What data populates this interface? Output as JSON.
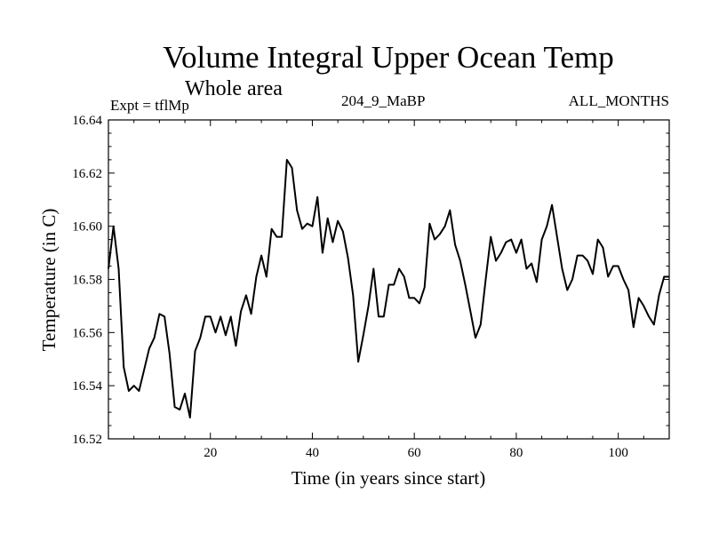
{
  "chart_data": {
    "type": "line",
    "title": "Volume Integral Upper Ocean Temp",
    "subtitle": "Whole area",
    "expt_label": "Expt = tflMp",
    "run_label": "204_9_MaBP",
    "months_label": "ALL_MONTHS",
    "xlabel": "Time (in years since start)",
    "ylabel": "Temperature (in C)",
    "xlim": [
      0,
      110
    ],
    "ylim": [
      16.52,
      16.64
    ],
    "x_ticks": [
      20,
      40,
      60,
      80,
      100
    ],
    "x_tick_labels": [
      "20",
      "40",
      "60",
      "80",
      "100"
    ],
    "y_ticks": [
      16.52,
      16.54,
      16.56,
      16.58,
      16.6,
      16.62,
      16.64
    ],
    "y_tick_labels": [
      "16.52",
      "16.54",
      "16.56",
      "16.58",
      "16.60",
      "16.62",
      "16.64"
    ],
    "line_color": "#000000",
    "series": [
      {
        "name": "Volume Integral Upper Ocean Temp",
        "x": [
          0,
          1,
          2,
          3,
          4,
          5,
          6,
          7,
          8,
          9,
          10,
          11,
          12,
          13,
          14,
          15,
          16,
          17,
          18,
          19,
          20,
          21,
          22,
          23,
          24,
          25,
          26,
          27,
          28,
          29,
          30,
          31,
          32,
          33,
          34,
          35,
          36,
          37,
          38,
          39,
          40,
          41,
          42,
          43,
          44,
          45,
          46,
          47,
          48,
          49,
          50,
          51,
          52,
          53,
          54,
          55,
          56,
          57,
          58,
          59,
          60,
          61,
          62,
          63,
          64,
          65,
          66,
          67,
          68,
          69,
          70,
          71,
          72,
          73,
          74,
          75,
          76,
          77,
          78,
          79,
          80,
          81,
          82,
          83,
          84,
          85,
          86,
          87,
          88,
          89,
          90,
          91,
          92,
          93,
          94,
          95,
          96,
          97,
          98,
          99,
          100,
          101,
          102,
          103,
          104,
          105,
          106,
          107,
          108,
          109,
          110
        ],
        "values": [
          16.584,
          16.6,
          16.584,
          16.547,
          16.538,
          16.54,
          16.538,
          16.546,
          16.554,
          16.558,
          16.567,
          16.566,
          16.552,
          16.532,
          16.531,
          16.537,
          16.528,
          16.553,
          16.558,
          16.566,
          16.566,
          16.56,
          16.566,
          16.559,
          16.566,
          16.555,
          16.568,
          16.574,
          16.567,
          16.581,
          16.589,
          16.581,
          16.599,
          16.596,
          16.596,
          16.625,
          16.622,
          16.606,
          16.599,
          16.601,
          16.6,
          16.611,
          16.59,
          16.603,
          16.594,
          16.602,
          16.598,
          16.588,
          16.574,
          16.549,
          16.559,
          16.57,
          16.584,
          16.566,
          16.566,
          16.578,
          16.578,
          16.584,
          16.581,
          16.573,
          16.573,
          16.571,
          16.577,
          16.601,
          16.595,
          16.597,
          16.6,
          16.606,
          16.593,
          16.587,
          16.578,
          16.568,
          16.558,
          16.563,
          16.58,
          16.596,
          16.587,
          16.59,
          16.594,
          16.595,
          16.59,
          16.595,
          16.584,
          16.586,
          16.579,
          16.595,
          16.6,
          16.608,
          16.596,
          16.584,
          16.576,
          16.58,
          16.589,
          16.589,
          16.587,
          16.582,
          16.595,
          16.592,
          16.581,
          16.585,
          16.585,
          16.58,
          16.576,
          16.562,
          16.573,
          16.57,
          16.566,
          16.563,
          16.574,
          16.581,
          16.581
        ]
      }
    ]
  }
}
